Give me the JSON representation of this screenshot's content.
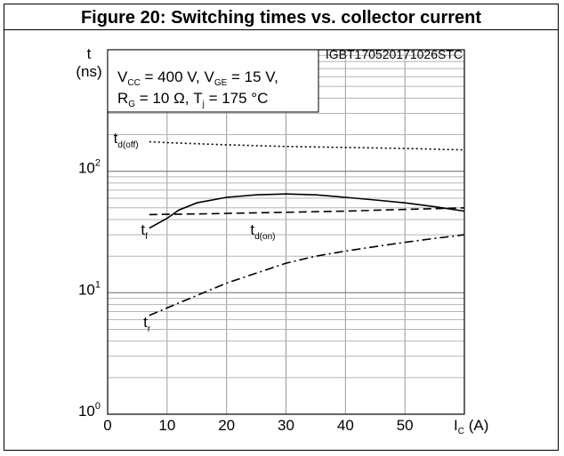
{
  "chart_data": {
    "type": "line",
    "title": "Figure 20: Switching times vs. collector current",
    "code": "IGBT170520171026STC",
    "ylabel": {
      "main": "t",
      "unit": "(ns)"
    },
    "xlabel": {
      "symbol": "I",
      "sub": "C",
      "unit": "(A)"
    },
    "conditions": {
      "line1": [
        {
          "t": "V"
        },
        {
          "sub": "CC"
        },
        {
          "t": " = 400 V, V"
        },
        {
          "sub": "GE"
        },
        {
          "t": " = 15 V,"
        }
      ],
      "line2": [
        {
          "t": "R"
        },
        {
          "sub": "G"
        },
        {
          "t": " = 10 Ω, T"
        },
        {
          "sub": "j"
        },
        {
          "t": " = 175 °C"
        }
      ]
    },
    "x_axis": {
      "min": 0,
      "max": 60,
      "ticks": [
        0,
        10,
        20,
        30,
        40,
        50
      ]
    },
    "y_axis": {
      "scale": "log",
      "min": 1,
      "max": 1000,
      "ticks": [
        {
          "value": 1,
          "base": "10",
          "exp": "0"
        },
        {
          "value": 10,
          "base": "10",
          "exp": "1"
        },
        {
          "value": 100,
          "base": "10",
          "exp": "2"
        }
      ]
    },
    "grid": true,
    "series": [
      {
        "name": "t",
        "sub": "d(off)",
        "style": "dotted",
        "x": [
          7,
          10,
          20,
          30,
          40,
          50,
          60
        ],
        "y": [
          175,
          172,
          165,
          160,
          157,
          154,
          150
        ],
        "label_at": [
          1,
          170
        ]
      },
      {
        "name": "t",
        "sub": "f",
        "style": "solid",
        "x": [
          7,
          10,
          12,
          15,
          20,
          25,
          30,
          35,
          40,
          45,
          50,
          55,
          60
        ],
        "y": [
          34,
          41,
          48,
          55,
          61,
          64,
          65,
          64,
          61,
          58,
          55,
          51,
          47
        ],
        "label_at": [
          5.6,
          30
        ]
      },
      {
        "name": "t",
        "sub": "d(on)",
        "style": "dashed",
        "x": [
          7,
          15,
          20,
          30,
          40,
          50,
          60
        ],
        "y": [
          44,
          44.5,
          45,
          46,
          47,
          48.5,
          50
        ],
        "label_at": [
          24,
          30
        ]
      },
      {
        "name": "t",
        "sub": "r",
        "style": "dashdot",
        "x": [
          7,
          10,
          15,
          20,
          25,
          30,
          35,
          40,
          45,
          50,
          55,
          60
        ],
        "y": [
          6.5,
          7.5,
          9.5,
          12,
          14.5,
          17.5,
          20,
          22,
          24,
          26,
          28,
          30
        ],
        "label_at": [
          6,
          5.2
        ]
      }
    ]
  }
}
